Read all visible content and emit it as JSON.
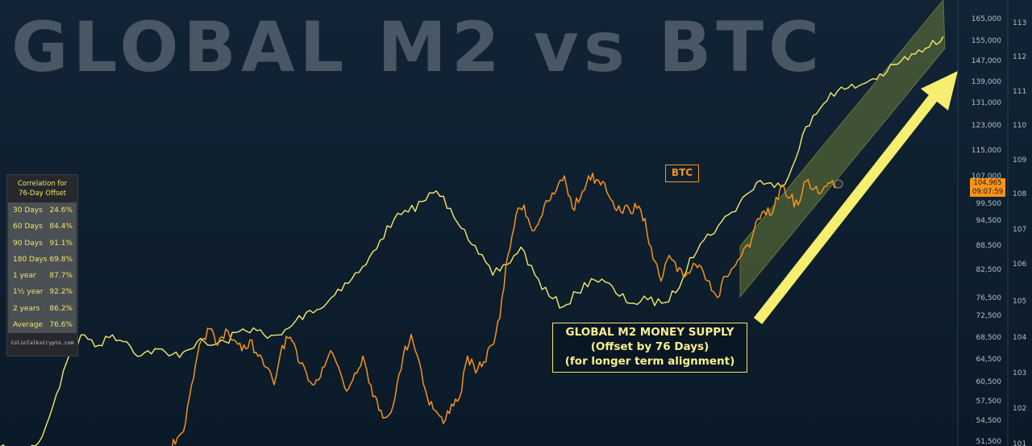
{
  "title": "GLOBAL M2 vs BTC",
  "correlation_panel": {
    "title_line1": "Correlation for",
    "title_line2": "76-Day Offset",
    "rows": [
      {
        "period": "30 Days",
        "value": "24.6%"
      },
      {
        "period": "60 Days",
        "value": "84.4%"
      },
      {
        "period": "90 Days",
        "value": "91.1%"
      },
      {
        "period": "180 Days",
        "value": "69.8%"
      },
      {
        "period": "1 year",
        "value": "87.7%"
      },
      {
        "period": "1½ year",
        "value": "92.2%"
      },
      {
        "period": "2 years",
        "value": "86.2%"
      },
      {
        "period": "Average",
        "value": "76.6%"
      }
    ],
    "source": "ColinTalksCrypto.com"
  },
  "labels": {
    "btc": "BTC",
    "m2_line1": "GLOBAL M2 MONEY SUPPLY",
    "m2_line2": "(Offset by 76 Days)",
    "m2_line3": "(for longer term alignment)"
  },
  "price_tag": {
    "price": "104,965",
    "countdown": "09:07:59"
  },
  "colors": {
    "btc": "#f7931a",
    "m2": "#f5ea6a",
    "background": "#0d1d2c",
    "channel": "#8a9a40",
    "arrow": "#f5ee6e"
  },
  "chart_data": {
    "type": "line",
    "title": "GLOBAL M2 vs BTC",
    "grid": false,
    "legend": "none",
    "y_left_ticks": [
      "165,000",
      "155,000",
      "147,000",
      "139,000",
      "131,000",
      "123,000",
      "115,000",
      "107,000",
      "99,500",
      "94,500",
      "88,500",
      "82,500",
      "76,500",
      "72,500",
      "68,500",
      "64,500",
      "60,500",
      "57,500",
      "54,500",
      "51,500"
    ],
    "y_right_ticks": [
      "113",
      "112",
      "111",
      "110",
      "109",
      "108",
      "107",
      "106",
      "105",
      "104",
      "103",
      "102",
      "101"
    ],
    "series": [
      {
        "name": "BTC",
        "axis": "left",
        "values": [
          50500,
          50000,
          52000,
          54000,
          61000,
          68000,
          70000,
          67000,
          70000,
          68000,
          66000,
          68000,
          65000,
          63000,
          60000,
          67000,
          68500,
          64000,
          62000,
          60000,
          63000,
          66000,
          63000,
          59000,
          62000,
          65000,
          60000,
          56000,
          55000,
          58000,
          65000,
          69000,
          64000,
          58000,
          56000,
          54000,
          57000,
          58000,
          65000,
          62000,
          64000,
          67000,
          72000,
          86000,
          96000,
          99000,
          92000,
          95000,
          100000,
          103000,
          107000,
          98000,
          101000,
          107000,
          106000,
          105000,
          100000,
          97000,
          98000,
          98000,
          95000,
          85000,
          80000,
          86000,
          82000,
          81000,
          84000,
          83000,
          80000,
          76500,
          81000,
          83000,
          86000,
          88000,
          95000,
          96000,
          98000,
          104500,
          101000,
          99000,
          105500,
          103500,
          103000,
          105000,
          104965
        ]
      },
      {
        "name": "GLOBAL M2 MONEY SUPPLY",
        "axis": "right",
        "values": [
          100.9,
          100.6,
          100.8,
          101.2,
          102.4,
          103.6,
          104.1,
          103.8,
          104.1,
          103.9,
          103.5,
          103.7,
          103.5,
          103.6,
          103.9,
          103.8,
          103.9,
          104.2,
          104.3,
          104.0,
          104.1,
          104.5,
          104.8,
          104.9,
          105.4,
          105.7,
          106.1,
          106.8,
          107.4,
          107.6,
          107.9,
          108.2,
          107.7,
          107.1,
          106.4,
          105.8,
          106.1,
          106.6,
          105.8,
          105.2,
          104.9,
          105.3,
          105.7,
          105.6,
          105.2,
          105.0,
          105.1,
          105.0,
          105.3,
          106.3,
          106.8,
          107.2,
          107.6,
          108.1,
          108.5,
          108.3,
          108.6,
          109.8,
          110.4,
          111.0,
          111.1,
          111.2,
          111.4,
          111.6,
          111.9,
          112.1,
          112.3,
          112.6
        ]
      }
    ],
    "annotations": [
      "BTC",
      "GLOBAL M2 MONEY SUPPLY",
      "(Offset by 76 Days)",
      "(for longer term alignment)"
    ]
  }
}
